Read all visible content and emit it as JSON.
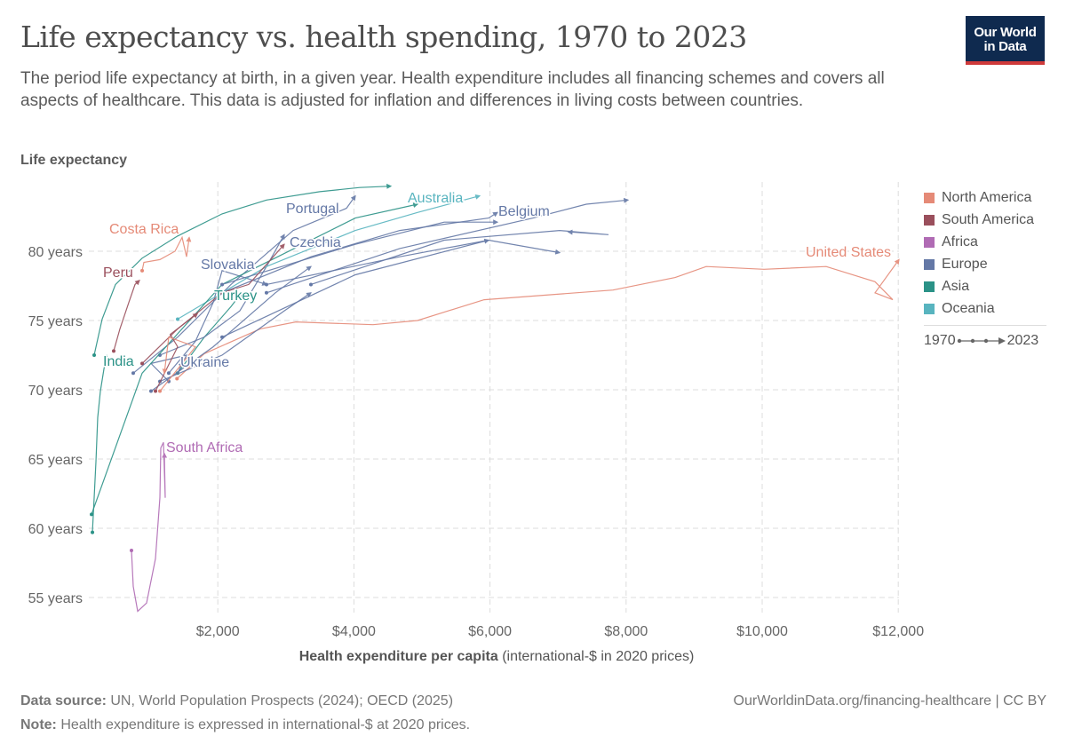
{
  "header": {
    "title": "Life expectancy vs. health spending, 1970 to 2023",
    "subtitle": "The period life expectancy at birth, in a given year. Health expenditure includes all financing schemes and covers all aspects of healthcare. This data is adjusted for inflation and differences in living costs between countries.",
    "logo": "Our World in Data",
    "logo_line1": "Our World",
    "logo_line2": "in Data"
  },
  "footer": {
    "source_label": "Data source:",
    "source": "UN, World Population Prospects (2024); OECD (2025)",
    "note_label": "Note:",
    "note": "Health expenditure is expressed in international-$ at 2020 prices.",
    "url": "OurWorldinData.org/financing-healthcare | CC BY"
  },
  "legend": {
    "items": [
      {
        "label": "North America",
        "color": "#e58a77"
      },
      {
        "label": "South America",
        "color": "#9a4f5c"
      },
      {
        "label": "Africa",
        "color": "#b06bb4"
      },
      {
        "label": "Europe",
        "color": "#6478a6"
      },
      {
        "label": "Asia",
        "color": "#2b9287"
      },
      {
        "label": "Oceania",
        "color": "#58b4bf"
      }
    ],
    "time_start": "1970",
    "time_end": "2023"
  },
  "chart_data": {
    "type": "line",
    "subtype": "connected scatter",
    "title": "Life expectancy vs. health spending, 1970 to 2023",
    "ylabel": "Life expectancy",
    "xlabel_bold": "Health expenditure per capita",
    "xlabel_rest": " (international-$ in 2020 prices)",
    "xlim": [
      0,
      12000
    ],
    "ylim": [
      54,
      85
    ],
    "grid": true,
    "legend_position": "right",
    "x_ticks": [
      {
        "v": 2000,
        "label": "$2,000"
      },
      {
        "v": 4000,
        "label": "$4,000"
      },
      {
        "v": 6000,
        "label": "$6,000"
      },
      {
        "v": 8000,
        "label": "$8,000"
      },
      {
        "v": 10000,
        "label": "$10,000"
      },
      {
        "v": 12000,
        "label": "$12,000"
      }
    ],
    "y_ticks": [
      {
        "v": 55,
        "label": "55 years"
      },
      {
        "v": 60,
        "label": "60 years"
      },
      {
        "v": 65,
        "label": "65 years"
      },
      {
        "v": 70,
        "label": "70 years"
      },
      {
        "v": 75,
        "label": "75 years"
      },
      {
        "v": 80,
        "label": "80 years"
      }
    ],
    "series": [
      {
        "name": "United States",
        "region": "North America",
        "points": [
          [
            1400,
            70.8
          ],
          [
            1800,
            72.6
          ],
          [
            2624,
            74.4
          ],
          [
            3146,
            74.9
          ],
          [
            4282,
            74.7
          ],
          [
            4935,
            75
          ],
          [
            5326,
            75.6
          ],
          [
            5914,
            76.5
          ],
          [
            7807,
            77.2
          ],
          [
            8720,
            78.1
          ],
          [
            9178,
            78.9
          ],
          [
            10026,
            78.7
          ],
          [
            10940,
            78.9
          ],
          [
            11658,
            77.8
          ],
          [
            11919,
            76.5
          ],
          [
            11658,
            77
          ],
          [
            12010,
            79.4
          ]
        ]
      },
      {
        "name": "South Africa",
        "region": "Africa",
        "points": [
          [
            731,
            58.4
          ],
          [
            757,
            55.8
          ],
          [
            822,
            54
          ],
          [
            953,
            54.6
          ],
          [
            1084,
            57.8
          ],
          [
            1149,
            62.2
          ],
          [
            1162,
            65.8
          ],
          [
            1201,
            66.2
          ],
          [
            1227,
            62.2
          ],
          [
            1214,
            65.4
          ]
        ]
      },
      {
        "name": "Costa Rica",
        "region": "North America",
        "points": [
          [
            888,
            78.6
          ],
          [
            914,
            79.2
          ],
          [
            1149,
            79.4
          ],
          [
            1371,
            80
          ],
          [
            1475,
            81
          ],
          [
            1540,
            79.6
          ],
          [
            1580,
            81
          ]
        ]
      },
      {
        "name": "Peru",
        "region": "South America",
        "points": [
          [
            470,
            72.8
          ],
          [
            561,
            74.4
          ],
          [
            692,
            76.3
          ],
          [
            783,
            77.6
          ],
          [
            849,
            77.9
          ]
        ]
      },
      {
        "name": "India",
        "region": "Asia",
        "points": [
          [
            157,
            59.7
          ],
          [
            183,
            62.2
          ],
          [
            209,
            64.8
          ],
          [
            235,
            68
          ],
          [
            274,
            69.9
          ],
          [
            326,
            71.5
          ],
          [
            366,
            72.5
          ]
        ]
      },
      {
        "name": "Turkey",
        "region": "Asia",
        "points": [
          [
            1410,
            71.2
          ],
          [
            1802,
            73.8
          ],
          [
            2193,
            76
          ],
          [
            2350,
            77
          ]
        ]
      },
      {
        "name": "Portugal",
        "region": "Europe",
        "points": [
          [
            757,
            71.2
          ],
          [
            1410,
            73.8
          ],
          [
            2193,
            77.6
          ],
          [
            3107,
            81.5
          ],
          [
            3890,
            83.1
          ],
          [
            4021,
            84
          ]
        ]
      },
      {
        "name": "Czechia",
        "region": "Europe",
        "points": [
          [
            1149,
            72.5
          ],
          [
            1802,
            73.8
          ],
          [
            2324,
            75.7
          ],
          [
            2715,
            78.9
          ],
          [
            2976,
            81.2
          ]
        ]
      },
      {
        "name": "Slovakia",
        "region": "Europe",
        "points": [
          [
            1279,
            71.2
          ],
          [
            1671,
            73.5
          ],
          [
            1932,
            76.3
          ],
          [
            2063,
            78.6
          ],
          [
            2715,
            77.6
          ]
        ]
      },
      {
        "name": "Ukraine",
        "region": "Europe",
        "points": [
          [
            1279,
            70.6
          ],
          [
            1018,
            71.9
          ],
          [
            1540,
            72.5
          ],
          [
            1410,
            71.2
          ],
          [
            1480,
            72
          ]
        ]
      },
      {
        "name": "Belgium",
        "region": "Europe",
        "points": [
          [
            2063,
            77
          ],
          [
            3368,
            79.6
          ],
          [
            4673,
            81.5
          ],
          [
            5979,
            82.4
          ],
          [
            6110,
            82.8
          ]
        ]
      },
      {
        "name": "Australia",
        "region": "Oceania",
        "points": [
          [
            1410,
            75.1
          ],
          [
            2715,
            78.9
          ],
          [
            4021,
            81.5
          ],
          [
            4935,
            82.8
          ],
          [
            5849,
            84
          ]
        ]
      },
      {
        "name": "",
        "region": "Asia",
        "points": [
          [
            183,
            72.5
          ],
          [
            300,
            75.1
          ],
          [
            496,
            77.6
          ],
          [
            888,
            79.5
          ],
          [
            1410,
            81.1
          ],
          [
            2063,
            82.7
          ],
          [
            2715,
            83.7
          ],
          [
            3499,
            84.3
          ],
          [
            4086,
            84.6
          ],
          [
            4543,
            84.7
          ]
        ]
      },
      {
        "name": "",
        "region": "Asia",
        "points": [
          [
            144,
            61
          ],
          [
            888,
            71.2
          ],
          [
            2063,
            77.6
          ],
          [
            4021,
            82.4
          ],
          [
            4935,
            83.4
          ]
        ]
      },
      {
        "name": "",
        "region": "Europe",
        "points": [
          [
            2715,
            77
          ],
          [
            4673,
            80.2
          ],
          [
            6632,
            82.4
          ],
          [
            7415,
            83.4
          ],
          [
            8029,
            83.7
          ]
        ]
      },
      {
        "name": "",
        "region": "Europe",
        "points": [
          [
            3368,
            77.6
          ],
          [
            5326,
            80.8
          ],
          [
            7024,
            81.5
          ],
          [
            7742,
            81.2
          ],
          [
            7150,
            81.4
          ]
        ]
      },
      {
        "name": "",
        "region": "Europe",
        "points": [
          [
            2715,
            77.6
          ],
          [
            4673,
            79.6
          ],
          [
            5979,
            80.8
          ],
          [
            7024,
            79.9
          ]
        ]
      },
      {
        "name": "",
        "region": "Europe",
        "points": [
          [
            2063,
            73.8
          ],
          [
            4021,
            78.3
          ],
          [
            5979,
            80.8
          ]
        ]
      },
      {
        "name": "",
        "region": "Europe",
        "points": [
          [
            1149,
            70.6
          ],
          [
            2063,
            72.5
          ],
          [
            2976,
            75.7
          ],
          [
            3368,
            77
          ]
        ]
      },
      {
        "name": "",
        "region": "Europe",
        "points": [
          [
            1018,
            69.9
          ],
          [
            1932,
            73.1
          ],
          [
            2846,
            77
          ],
          [
            3368,
            78.9
          ]
        ]
      },
      {
        "name": "",
        "region": "Europe",
        "points": [
          [
            2063,
            77.6
          ],
          [
            4021,
            80.5
          ],
          [
            5326,
            82.1
          ],
          [
            6110,
            82.1
          ]
        ]
      },
      {
        "name": "",
        "region": "South America",
        "points": [
          [
            888,
            71.9
          ],
          [
            1410,
            74.4
          ],
          [
            2063,
            77
          ],
          [
            2454,
            77.6
          ],
          [
            2976,
            80.5
          ]
        ]
      },
      {
        "name": "",
        "region": "South America",
        "points": [
          [
            1084,
            69.9
          ],
          [
            1410,
            73.1
          ],
          [
            1300,
            74
          ],
          [
            1700,
            75.5
          ]
        ]
      },
      {
        "name": "",
        "region": "North America",
        "points": [
          [
            1149,
            69.9
          ],
          [
            1671,
            73.1
          ],
          [
            1279,
            73.8
          ],
          [
            1214,
            71.2
          ]
        ]
      }
    ]
  }
}
